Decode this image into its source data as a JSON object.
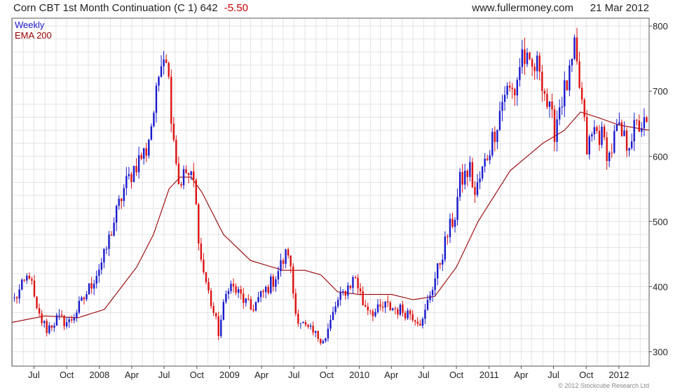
{
  "header": {
    "title": "Corn CBT 1st Month Continuation (C 1) 642",
    "change": "-5.50",
    "site": "www.fullermoney.com",
    "date": "21 Mar 2012"
  },
  "legend": {
    "weekly": "Weekly",
    "ema": "EMA 200"
  },
  "copyright": "© 2012 Stockcube Research Ltd",
  "colors": {
    "up": "#1a1acc",
    "down": "#dd1111",
    "ema": "#990000",
    "grid": "#e3e3e3",
    "frame": "#555555"
  },
  "chart_data": {
    "type": "candlestick",
    "frequency": "weekly",
    "x_labels": [
      "Jul",
      "Oct",
      "2008",
      "Apr",
      "Jul",
      "Oct",
      "2009",
      "Apr",
      "Jul",
      "Oct",
      "2010",
      "Apr",
      "Jul",
      "Oct",
      "2011",
      "Apr",
      "Jul",
      "Oct",
      "2012"
    ],
    "y_ticks": [
      300,
      400,
      500,
      600,
      700,
      800
    ],
    "ylim": [
      278,
      812
    ],
    "x_range": [
      "2007-04-30",
      "2012-03-26"
    ],
    "anchors": [
      {
        "date": "2007-05-07",
        "close": 380
      },
      {
        "date": "2007-06-04",
        "close": 405
      },
      {
        "date": "2007-06-18",
        "close": 420
      },
      {
        "date": "2007-07-09",
        "close": 360
      },
      {
        "date": "2007-08-06",
        "close": 335
      },
      {
        "date": "2007-09-03",
        "close": 350
      },
      {
        "date": "2007-10-08",
        "close": 345
      },
      {
        "date": "2007-11-12",
        "close": 375
      },
      {
        "date": "2007-12-10",
        "close": 405
      },
      {
        "date": "2008-01-14",
        "close": 445
      },
      {
        "date": "2008-02-11",
        "close": 500
      },
      {
        "date": "2008-03-10",
        "close": 550
      },
      {
        "date": "2008-04-14",
        "close": 590
      },
      {
        "date": "2008-05-12",
        "close": 610
      },
      {
        "date": "2008-06-09",
        "close": 690
      },
      {
        "date": "2008-06-23",
        "close": 760
      },
      {
        "date": "2008-07-07",
        "close": 760
      },
      {
        "date": "2008-07-21",
        "close": 670
      },
      {
        "date": "2008-08-11",
        "close": 560
      },
      {
        "date": "2008-09-01",
        "close": 575
      },
      {
        "date": "2008-09-22",
        "close": 560
      },
      {
        "date": "2008-10-13",
        "close": 440
      },
      {
        "date": "2008-11-03",
        "close": 390
      },
      {
        "date": "2008-12-01",
        "close": 330
      },
      {
        "date": "2008-12-29",
        "close": 405
      },
      {
        "date": "2009-02-02",
        "close": 385
      },
      {
        "date": "2009-03-02",
        "close": 365
      },
      {
        "date": "2009-04-06",
        "close": 390
      },
      {
        "date": "2009-05-04",
        "close": 410
      },
      {
        "date": "2009-06-01",
        "close": 440
      },
      {
        "date": "2009-06-15",
        "close": 455
      },
      {
        "date": "2009-07-06",
        "close": 360
      },
      {
        "date": "2009-08-03",
        "close": 335
      },
      {
        "date": "2009-08-31",
        "close": 325
      },
      {
        "date": "2009-09-28",
        "close": 320
      },
      {
        "date": "2009-10-26",
        "close": 370
      },
      {
        "date": "2009-11-23",
        "close": 395
      },
      {
        "date": "2009-12-21",
        "close": 415
      },
      {
        "date": "2010-01-11",
        "close": 375
      },
      {
        "date": "2010-02-15",
        "close": 360
      },
      {
        "date": "2010-03-15",
        "close": 370
      },
      {
        "date": "2010-04-19",
        "close": 365
      },
      {
        "date": "2010-05-24",
        "close": 360
      },
      {
        "date": "2010-06-28",
        "close": 345
      },
      {
        "date": "2010-07-19",
        "close": 390
      },
      {
        "date": "2010-08-09",
        "close": 425
      },
      {
        "date": "2010-09-06",
        "close": 480
      },
      {
        "date": "2010-09-27",
        "close": 510
      },
      {
        "date": "2010-10-11",
        "close": 560
      },
      {
        "date": "2010-11-08",
        "close": 580
      },
      {
        "date": "2010-11-22",
        "close": 540
      },
      {
        "date": "2010-12-20",
        "close": 590
      },
      {
        "date": "2011-01-17",
        "close": 640
      },
      {
        "date": "2011-02-14",
        "close": 700
      },
      {
        "date": "2011-03-14",
        "close": 700
      },
      {
        "date": "2011-04-04",
        "close": 760
      },
      {
        "date": "2011-04-25",
        "close": 730
      },
      {
        "date": "2011-05-23",
        "close": 740
      },
      {
        "date": "2011-06-13",
        "close": 680
      },
      {
        "date": "2011-07-04",
        "close": 640
      },
      {
        "date": "2011-07-18",
        "close": 680
      },
      {
        "date": "2011-08-15",
        "close": 720
      },
      {
        "date": "2011-08-29",
        "close": 760
      },
      {
        "date": "2011-09-19",
        "close": 680
      },
      {
        "date": "2011-10-03",
        "close": 610
      },
      {
        "date": "2011-10-24",
        "close": 640
      },
      {
        "date": "2011-11-14",
        "close": 630
      },
      {
        "date": "2011-12-05",
        "close": 600
      },
      {
        "date": "2011-12-26",
        "close": 640
      },
      {
        "date": "2012-01-23",
        "close": 620
      },
      {
        "date": "2012-02-13",
        "close": 640
      },
      {
        "date": "2012-03-05",
        "close": 650
      },
      {
        "date": "2012-03-19",
        "close": 642
      }
    ],
    "ema_200": [
      {
        "date": "2007-04-30",
        "value": 345
      },
      {
        "date": "2007-08-01",
        "value": 355
      },
      {
        "date": "2007-11-01",
        "value": 352
      },
      {
        "date": "2008-01-15",
        "value": 365
      },
      {
        "date": "2008-04-15",
        "value": 430
      },
      {
        "date": "2008-06-01",
        "value": 480
      },
      {
        "date": "2008-07-15",
        "value": 550
      },
      {
        "date": "2008-08-15",
        "value": 568
      },
      {
        "date": "2008-09-15",
        "value": 568
      },
      {
        "date": "2008-10-15",
        "value": 545
      },
      {
        "date": "2008-12-15",
        "value": 480
      },
      {
        "date": "2009-03-01",
        "value": 440
      },
      {
        "date": "2009-06-01",
        "value": 425
      },
      {
        "date": "2009-08-01",
        "value": 425
      },
      {
        "date": "2009-09-15",
        "value": 418
      },
      {
        "date": "2009-11-01",
        "value": 392
      },
      {
        "date": "2010-01-01",
        "value": 388
      },
      {
        "date": "2010-04-01",
        "value": 388
      },
      {
        "date": "2010-06-01",
        "value": 380
      },
      {
        "date": "2010-08-01",
        "value": 385
      },
      {
        "date": "2010-10-01",
        "value": 430
      },
      {
        "date": "2010-12-01",
        "value": 500
      },
      {
        "date": "2011-03-01",
        "value": 578
      },
      {
        "date": "2011-06-01",
        "value": 620
      },
      {
        "date": "2011-08-01",
        "value": 640
      },
      {
        "date": "2011-09-15",
        "value": 668
      },
      {
        "date": "2011-11-01",
        "value": 660
      },
      {
        "date": "2012-01-01",
        "value": 648
      },
      {
        "date": "2012-03-26",
        "value": 640
      }
    ]
  }
}
